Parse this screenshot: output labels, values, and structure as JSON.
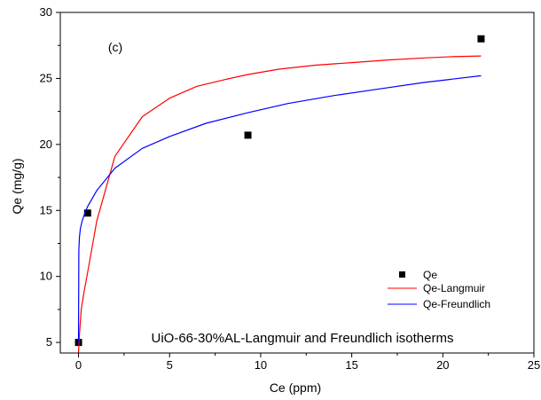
{
  "chart_data": {
    "type": "scatter",
    "panel_label": "(c)",
    "annotation": "UiO-66-30%AL-Langmuir and Freundlich isotherms",
    "xlabel": "Ce (ppm)",
    "ylabel": "Qe (mg/g)",
    "xlim": [
      -1,
      25
    ],
    "ylim": [
      4.2,
      30
    ],
    "x_ticks": [
      0,
      5,
      10,
      15,
      20,
      25
    ],
    "y_ticks": [
      5,
      10,
      15,
      20,
      25,
      30
    ],
    "grid": false,
    "legend_position": "bottom-right",
    "series": [
      {
        "name": "Qe",
        "kind": "markers",
        "color": "#000000",
        "marker": "square",
        "x": [
          0.0,
          0.5,
          9.3,
          22.1
        ],
        "y": [
          5.0,
          14.8,
          20.7,
          28.0
        ]
      },
      {
        "name": "Qe-Langmuir",
        "kind": "line",
        "color": "#ff0000",
        "x": [
          0.0,
          0.05,
          0.15,
          0.3,
          0.5,
          1.0,
          2.0,
          3.5,
          5.0,
          6.5,
          8.0,
          9.3,
          11.0,
          13.0,
          15.0,
          17.0,
          19.0,
          20.5,
          22.1
        ],
        "y": [
          4.2,
          5.6,
          7.5,
          8.8,
          10.3,
          14.2,
          19.1,
          22.1,
          23.5,
          24.4,
          24.9,
          25.3,
          25.7,
          26.0,
          26.2,
          26.4,
          26.55,
          26.65,
          26.7
        ]
      },
      {
        "name": "Qe-Freundlich",
        "kind": "line",
        "color": "#0000ff",
        "x": [
          0.0,
          0.02,
          0.05,
          0.1,
          0.2,
          0.35,
          0.5,
          1.0,
          2.0,
          3.5,
          5.0,
          7.0,
          9.3,
          11.5,
          14.0,
          16.5,
          19.0,
          22.1
        ],
        "y": [
          5.0,
          12.0,
          13.0,
          13.6,
          14.2,
          14.8,
          15.3,
          16.5,
          18.2,
          19.7,
          20.6,
          21.6,
          22.4,
          23.1,
          23.7,
          24.2,
          24.7,
          25.2
        ]
      }
    ]
  }
}
